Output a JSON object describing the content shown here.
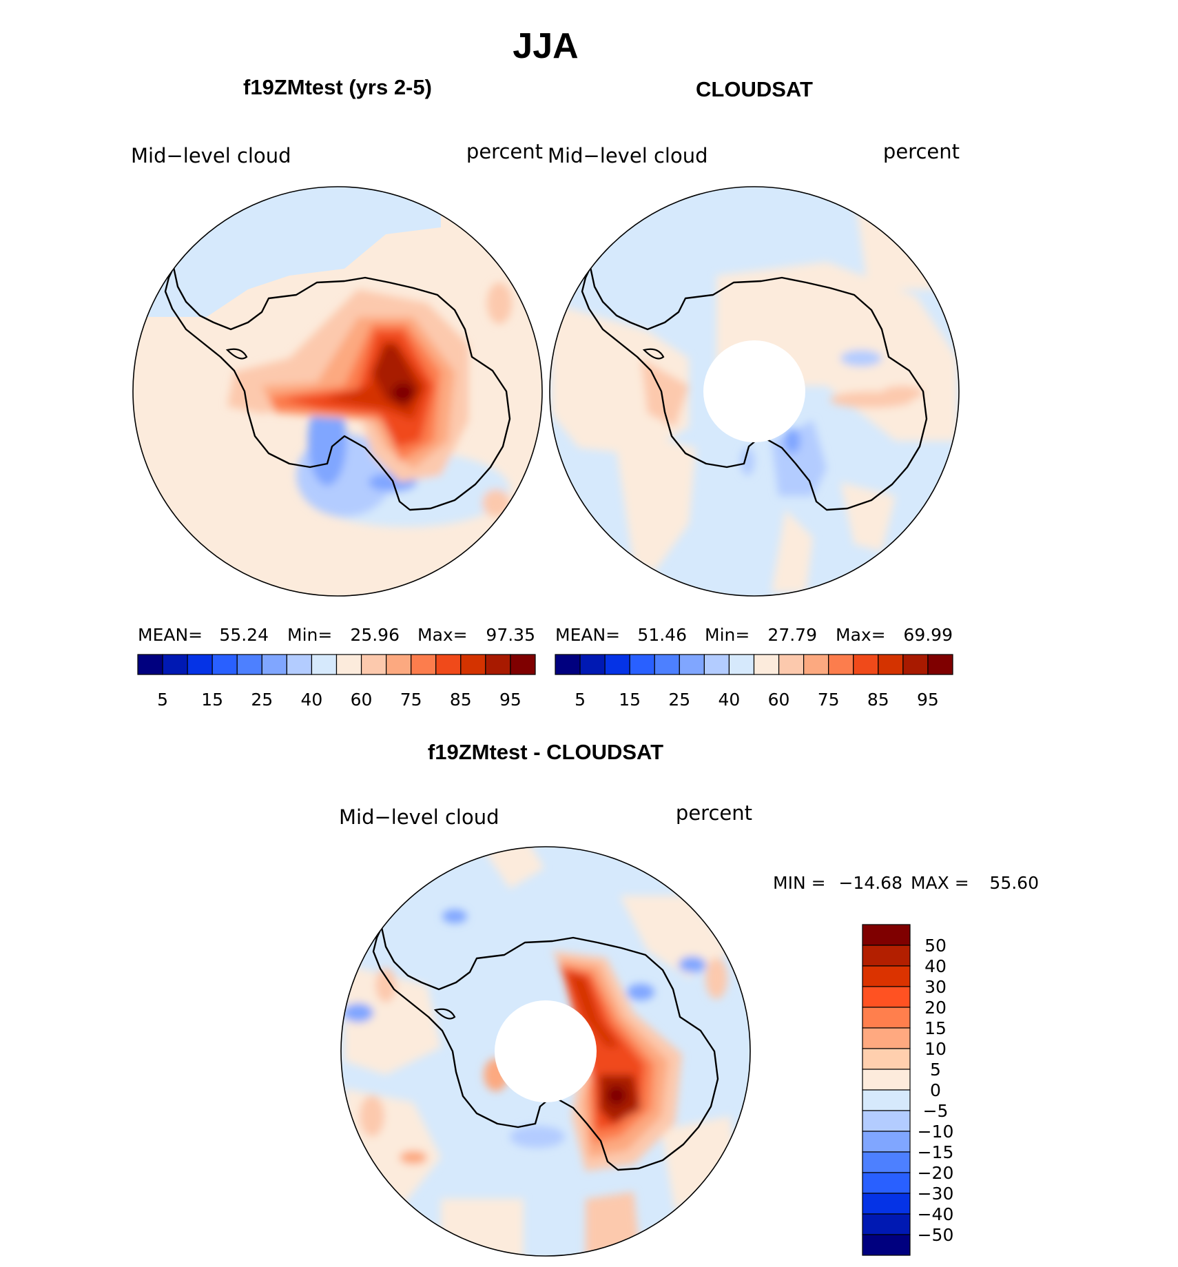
{
  "figure": {
    "season": "JJA"
  },
  "chart_data": [
    {
      "type": "heatmap",
      "projection": "south-polar-stereographic",
      "title": "f19ZMtest (yrs 2-5)",
      "left_label": "Mid−level cloud",
      "right_label": "percent",
      "stats": {
        "mean_label": "MEAN=",
        "mean": "55.24",
        "min_label": "Min=",
        "min": "25.96",
        "max_label": "Max=",
        "max": "97.35"
      },
      "colorbar": {
        "tick_labels": [
          "5",
          "15",
          "25",
          "40",
          "60",
          "75",
          "85",
          "95"
        ],
        "colors": [
          "#00007f",
          "#0019b3",
          "#0533e6",
          "#2960ff",
          "#4d80ff",
          "#80a6ff",
          "#b3ccff",
          "#d6e9fc",
          "#fcebdc",
          "#fcc9ad",
          "#fca980",
          "#fc7d4d",
          "#f04a1a",
          "#d43300",
          "#a81a00",
          "#7f0000"
        ]
      },
      "field_summary": "Antarctic interior high cloud up to ~97 percent; ocean ~50-60 percent"
    },
    {
      "type": "heatmap",
      "projection": "south-polar-stereographic",
      "title": "CLOUDSAT",
      "left_label": "Mid−level cloud",
      "right_label": "percent",
      "stats": {
        "mean_label": "MEAN=",
        "mean": "51.46",
        "min_label": "Min=",
        "min": "27.79",
        "max_label": "Max=",
        "max": "69.99"
      },
      "colorbar": {
        "tick_labels": [
          "5",
          "15",
          "25",
          "40",
          "60",
          "75",
          "85",
          "95"
        ],
        "colors": [
          "#00007f",
          "#0019b3",
          "#0533e6",
          "#2960ff",
          "#4d80ff",
          "#80a6ff",
          "#b3ccff",
          "#d6e9fc",
          "#fcebdc",
          "#fcc9ad",
          "#fca980",
          "#fc7d4d",
          "#f04a1a",
          "#d43300",
          "#a81a00",
          "#7f0000"
        ]
      },
      "field_summary": "Mostly 40-75 percent, polar hole with no data"
    },
    {
      "type": "heatmap",
      "projection": "south-polar-stereographic",
      "title": "f19ZMtest - CLOUDSAT",
      "left_label": "Mid−level cloud",
      "right_label": "percent",
      "stats": {
        "min_label": "MIN =",
        "min": "−14.68",
        "max_label": "MAX =",
        "max": "55.60"
      },
      "colorbar": {
        "tick_labels": [
          "50",
          "40",
          "30",
          "20",
          "15",
          "10",
          "5",
          "0",
          "−5",
          "−10",
          "−15",
          "−20",
          "−30",
          "−40",
          "−50"
        ],
        "colors": [
          "#7f0000",
          "#b31f00",
          "#db3300",
          "#ff5222",
          "#ff7f4d",
          "#ffa980",
          "#ffcfae",
          "#fdebdc",
          "#d6e9fc",
          "#b3ccff",
          "#80a6ff",
          "#4d80ff",
          "#2960ff",
          "#0533e6",
          "#0019b3",
          "#00007f"
        ]
      },
      "field_summary": "Model minus observations: positive bias up to ~55 over East Antarctica"
    }
  ]
}
